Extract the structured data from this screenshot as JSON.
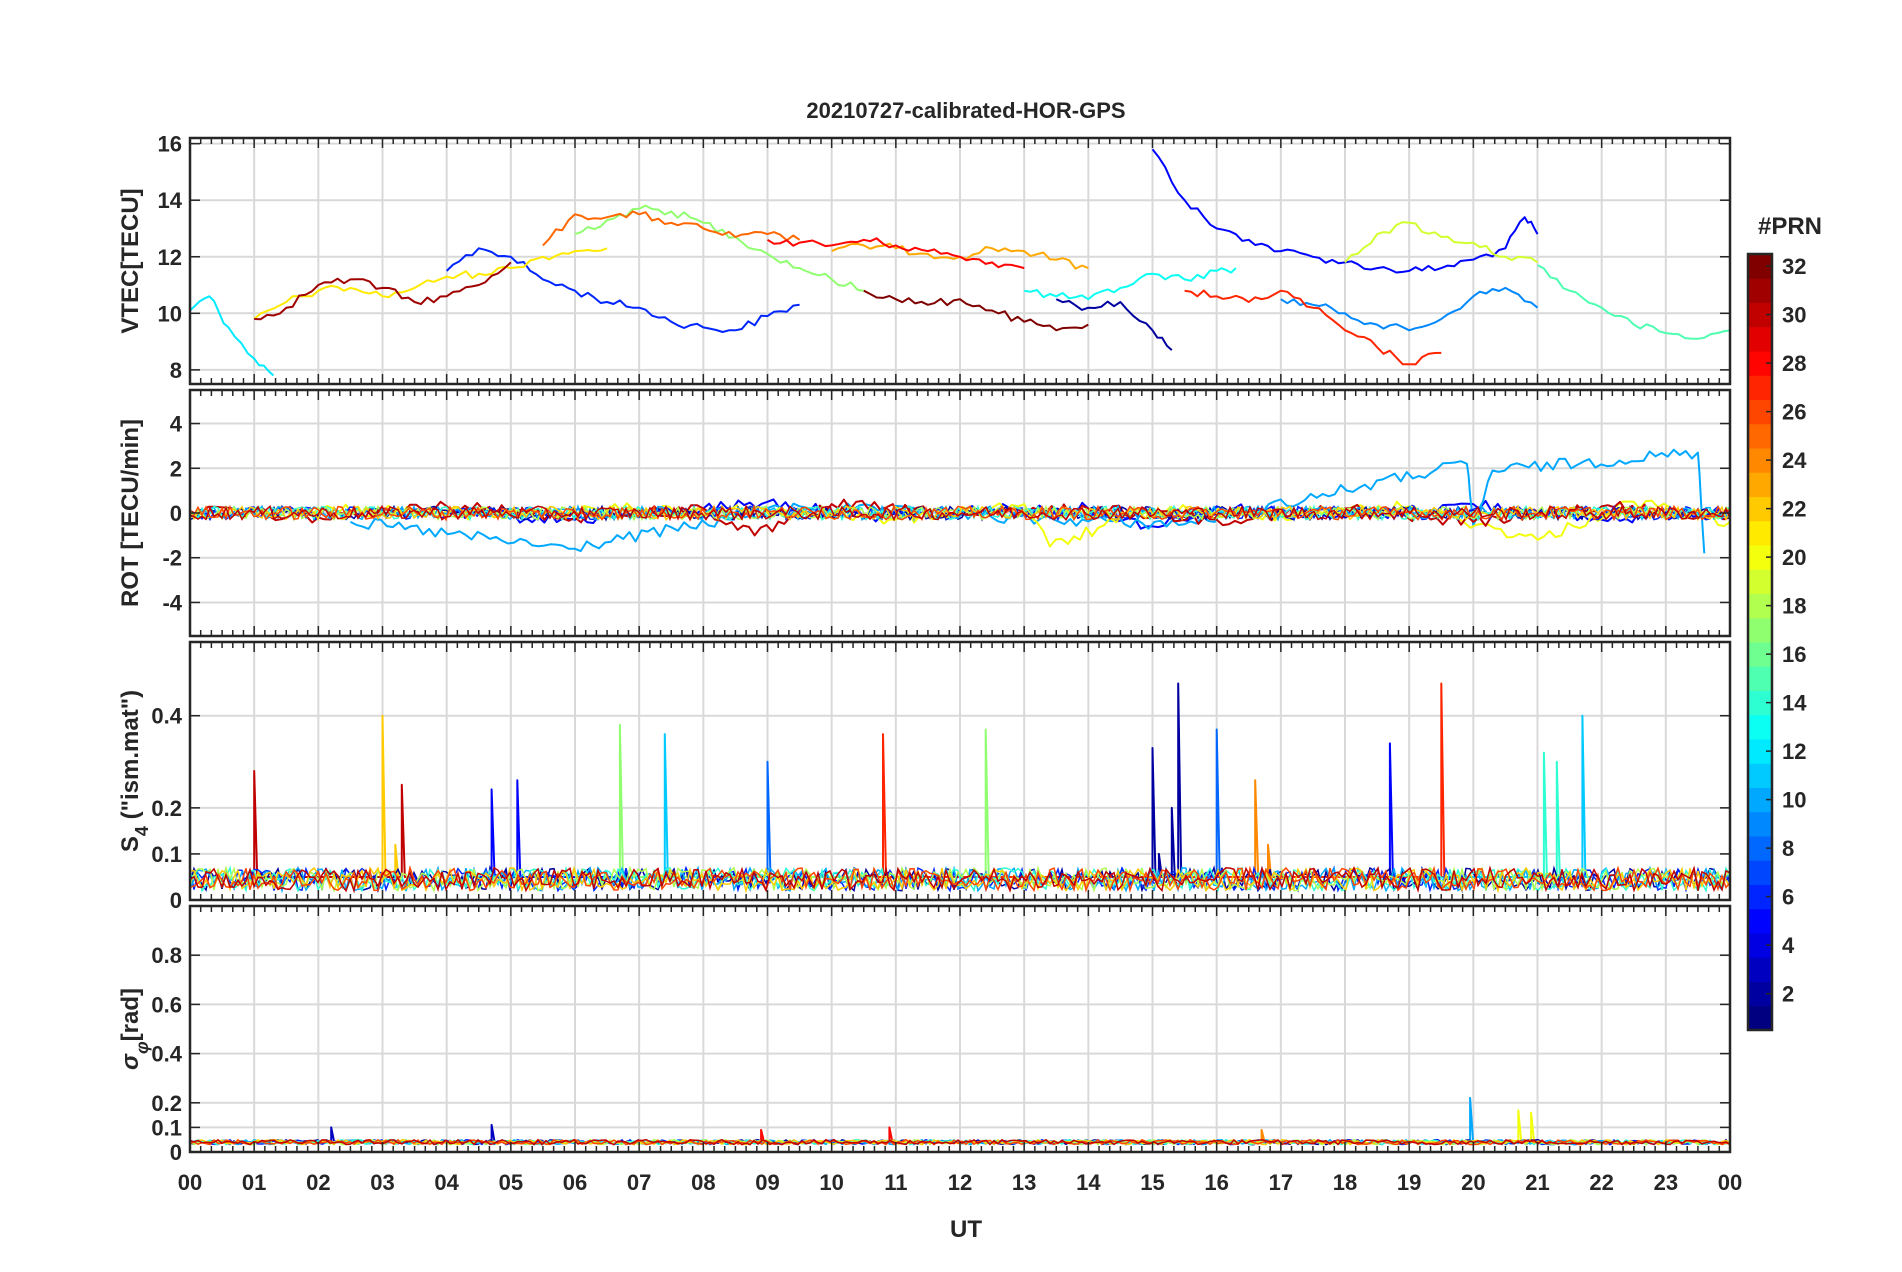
{
  "figure": {
    "title": "20210727-calibrated-HOR-GPS",
    "xlabel": "UT"
  },
  "chart_data": [
    {
      "id": "vtec",
      "type": "line",
      "ylabel": "VTEC[TECU]",
      "xlim": [
        0,
        24
      ],
      "ylim": [
        7.5,
        16.2
      ],
      "yticks": [
        8,
        10,
        12,
        14,
        16
      ],
      "grid": true,
      "series": [
        {
          "prn": 2,
          "x": [
            13.5,
            14,
            14.5,
            15,
            15.3
          ],
          "y": [
            10.5,
            10.2,
            10.4,
            9.4,
            8.7
          ]
        },
        {
          "prn": 5,
          "x": [
            15.0,
            15.5,
            16,
            16.5,
            17,
            17.5,
            18,
            18.5,
            19,
            19.5,
            20,
            20.5,
            20.8,
            21
          ],
          "y": [
            15.8,
            14.0,
            13.0,
            12.6,
            12.2,
            12.0,
            11.8,
            11.6,
            11.5,
            11.6,
            11.9,
            12.3,
            13.4,
            12.8
          ]
        },
        {
          "prn": 6,
          "x": [
            4,
            4.5,
            5,
            5.5,
            6,
            6.5,
            7,
            7.5,
            8,
            8.5,
            9,
            9.5
          ],
          "y": [
            11.5,
            12.3,
            12.0,
            11.2,
            10.8,
            10.4,
            10.2,
            9.7,
            9.5,
            9.4,
            9.9,
            10.3
          ]
        },
        {
          "prn": 9,
          "x": [
            17,
            17.5,
            18,
            18.5,
            19,
            19.5,
            20,
            20.5,
            21
          ],
          "y": [
            10.5,
            10.3,
            10.0,
            9.6,
            9.4,
            9.8,
            10.6,
            10.9,
            10.2
          ]
        },
        {
          "prn": 12,
          "x": [
            0,
            0.3,
            0.6,
            1,
            1.3
          ],
          "y": [
            10.1,
            10.6,
            9.5,
            8.4,
            7.8
          ]
        },
        {
          "prn": 13,
          "x": [
            13,
            13.5,
            14,
            14.5,
            15,
            15.5,
            16,
            16.3
          ],
          "y": [
            10.8,
            10.6,
            10.5,
            10.9,
            11.4,
            11.2,
            11.5,
            11.6
          ]
        },
        {
          "prn": 15,
          "x": [
            21,
            21.5,
            22,
            22.5,
            23,
            23.5,
            24
          ],
          "y": [
            11.7,
            10.8,
            10.2,
            9.6,
            9.3,
            9.1,
            9.4
          ]
        },
        {
          "prn": 17,
          "x": [
            6,
            6.5,
            7,
            7.5,
            8,
            8.5,
            9,
            9.5,
            10,
            10.5
          ],
          "y": [
            12.8,
            13.3,
            13.7,
            13.6,
            13.2,
            12.7,
            12.1,
            11.6,
            11.2,
            10.8
          ]
        },
        {
          "prn": 19,
          "x": [
            18,
            18.5,
            19,
            19.5,
            20,
            20.5,
            21
          ],
          "y": [
            11.8,
            12.8,
            13.2,
            12.7,
            12.5,
            12.0,
            11.8
          ]
        },
        {
          "prn": 21,
          "x": [
            1,
            1.5,
            2,
            2.5,
            3,
            3.5,
            4,
            4.5,
            5,
            5.5,
            6,
            6.5
          ],
          "y": [
            9.8,
            10.4,
            10.8,
            10.9,
            10.6,
            10.9,
            11.3,
            11.4,
            11.6,
            12.0,
            12.2,
            12.3
          ]
        },
        {
          "prn": 23,
          "x": [
            10,
            10.5,
            11,
            11.5,
            12,
            12.5,
            13,
            13.5,
            14
          ],
          "y": [
            12.2,
            12.4,
            12.3,
            12.1,
            12.0,
            12.3,
            12.2,
            11.9,
            11.6
          ]
        },
        {
          "prn": 25,
          "x": [
            5.5,
            6,
            6.5,
            7,
            7.5,
            8,
            8.5,
            9,
            9.5
          ],
          "y": [
            12.4,
            13.5,
            13.4,
            13.5,
            13.2,
            13.0,
            12.7,
            12.8,
            12.6
          ]
        },
        {
          "prn": 27,
          "x": [
            15.5,
            16,
            16.5,
            17,
            17.5,
            18,
            18.5,
            19,
            19.5
          ],
          "y": [
            10.8,
            10.6,
            10.4,
            10.8,
            10.2,
            9.4,
            8.8,
            8.2,
            8.6
          ]
        },
        {
          "prn": 28,
          "x": [
            9,
            9.5,
            10,
            10.5,
            11,
            11.5,
            12,
            12.5,
            13
          ],
          "y": [
            12.6,
            12.5,
            12.4,
            12.6,
            12.4,
            12.2,
            12.0,
            11.8,
            11.6
          ]
        },
        {
          "prn": 31,
          "x": [
            1,
            1.5,
            2,
            2.5,
            3,
            3.5,
            4,
            4.5,
            5
          ],
          "y": [
            9.8,
            10.2,
            11.0,
            11.2,
            10.9,
            10.4,
            10.6,
            11.0,
            11.8
          ]
        },
        {
          "prn": 32,
          "x": [
            10.5,
            11,
            11.5,
            12,
            12.5,
            13,
            13.5,
            14
          ],
          "y": [
            10.8,
            10.5,
            10.3,
            10.5,
            10.1,
            9.7,
            9.4,
            9.6
          ]
        }
      ]
    },
    {
      "id": "rot",
      "type": "line",
      "ylabel": "ROT [TECU/min]",
      "xlim": [
        0,
        24
      ],
      "ylim": [
        -5.5,
        5.5
      ],
      "yticks": [
        -4,
        -2,
        0,
        2,
        4
      ],
      "grid": true,
      "series": [
        {
          "prn": 5,
          "x": [
            4,
            6,
            8,
            9,
            10.5,
            12,
            14,
            15,
            16,
            18,
            20,
            22,
            24
          ],
          "y": [
            0,
            -0.3,
            0.2,
            0.5,
            -0.2,
            0.1,
            0.2,
            -0.6,
            0.3,
            -0.2,
            0.4,
            -0.3,
            0.2
          ]
        },
        {
          "prn": 10,
          "x": [
            2.5,
            5.9,
            9.5,
            12.5,
            15.5,
            19.9,
            20,
            20.3,
            23.5,
            23.6
          ],
          "y": [
            -0.4,
            -1.6,
            0.3,
            -0.2,
            -0.5,
            2.2,
            -0.6,
            1.9,
            2.7,
            -1.8
          ]
        },
        {
          "prn": 20,
          "x": [
            1,
            3,
            5,
            7,
            9,
            11,
            13,
            13.4,
            15,
            17,
            19,
            21,
            22.5,
            24
          ],
          "y": [
            0.2,
            0.1,
            -0.1,
            0.2,
            0.1,
            -0.3,
            0.4,
            -1.5,
            0.2,
            -0.1,
            0.3,
            -1.2,
            0.5,
            -0.4
          ]
        },
        {
          "prn": 30,
          "x": [
            0,
            2,
            4,
            6,
            8,
            8.8,
            10,
            12,
            14,
            16,
            18,
            20,
            22,
            24
          ],
          "y": [
            0.1,
            -0.2,
            0.3,
            -0.2,
            0.2,
            -1.0,
            0.4,
            -0.1,
            0.2,
            -0.3,
            0.2,
            -0.4,
            0.3,
            -0.2
          ]
        }
      ]
    },
    {
      "id": "s4",
      "type": "line",
      "ylabel": "S4 (\"ism.mat\")",
      "ylabel_main": "S",
      "ylabel_sub": "4",
      "ylabel_rest": " (\"ism.mat\")",
      "xlim": [
        0,
        24
      ],
      "ylim": [
        0,
        0.56
      ],
      "yticks": [
        0,
        0.1,
        0.2,
        0.4
      ],
      "grid": true,
      "series": [
        {
          "prn": 2,
          "x": [
            14.8,
            15,
            15.1,
            15.3,
            15.4,
            15.5
          ],
          "y": [
            0.05,
            0.33,
            0.1,
            0.2,
            0.47,
            0.05
          ]
        },
        {
          "prn": 5,
          "x": [
            4.5,
            4.7,
            4.9,
            5.1,
            18.5,
            18.7,
            18.9
          ],
          "y": [
            0.05,
            0.24,
            0.06,
            0.26,
            0.05,
            0.34,
            0.04
          ]
        },
        {
          "prn": 8,
          "x": [
            8.8,
            9,
            9.2,
            15.9,
            16,
            16.1
          ],
          "y": [
            0.05,
            0.3,
            0.05,
            0.05,
            0.37,
            0.06
          ]
        },
        {
          "prn": 11,
          "x": [
            7.2,
            7.4,
            7.6,
            21.6,
            21.7,
            21.8
          ],
          "y": [
            0.05,
            0.36,
            0.05,
            0.05,
            0.4,
            0.05
          ]
        },
        {
          "prn": 14,
          "x": [
            21.0,
            21.1,
            21.2,
            21.3
          ],
          "y": [
            0.05,
            0.32,
            0.05,
            0.3
          ]
        },
        {
          "prn": 17,
          "x": [
            12.3,
            12.4,
            12.5,
            6.6,
            6.7,
            6.8
          ],
          "y": [
            0.05,
            0.37,
            0.05,
            0.05,
            0.38,
            0.05
          ]
        },
        {
          "prn": 22,
          "x": [
            2.9,
            3,
            3.1,
            3.2
          ],
          "y": [
            0.05,
            0.4,
            0.06,
            0.12
          ]
        },
        {
          "prn": 24,
          "x": [
            16.4,
            16.6,
            16.8,
            17.0
          ],
          "y": [
            0.05,
            0.26,
            0.12,
            0.06
          ]
        },
        {
          "prn": 27,
          "x": [
            10.7,
            10.8,
            10.9,
            19.4,
            19.5,
            19.6
          ],
          "y": [
            0.05,
            0.36,
            0.05,
            0.05,
            0.47,
            0.05
          ]
        },
        {
          "prn": 30,
          "x": [
            0.9,
            1,
            1.1,
            3.2,
            3.3,
            3.4
          ],
          "y": [
            0.05,
            0.28,
            0.06,
            0.05,
            0.25,
            0.05
          ]
        }
      ]
    },
    {
      "id": "sigma_phi",
      "type": "line",
      "ylabel": "σφ[rad]",
      "ylabel_main": "σ",
      "ylabel_sub": "φ",
      "ylabel_rest": "[rad]",
      "xlim": [
        0,
        24
      ],
      "ylim": [
        0,
        1.0
      ],
      "yticks": [
        0,
        0.1,
        0.2,
        0.4,
        0.6,
        0.8
      ],
      "grid": true,
      "series": [
        {
          "prn": 3,
          "x": [
            2,
            2.2,
            2.4,
            4.6,
            4.7,
            4.8
          ],
          "y": [
            0.04,
            0.1,
            0.04,
            0.04,
            0.11,
            0.04
          ]
        },
        {
          "prn": 10,
          "x": [
            19.9,
            19.95,
            20.0
          ],
          "y": [
            0.04,
            0.22,
            0.04
          ]
        },
        {
          "prn": 20,
          "x": [
            20.6,
            20.7,
            20.8,
            20.9
          ],
          "y": [
            0.04,
            0.17,
            0.05,
            0.16
          ]
        },
        {
          "prn": 24,
          "x": [
            16.5,
            16.7,
            16.9
          ],
          "y": [
            0.04,
            0.09,
            0.05
          ]
        },
        {
          "prn": 28,
          "x": [
            10.8,
            10.9,
            11.0,
            8.8,
            8.9,
            9.0
          ],
          "y": [
            0.04,
            0.1,
            0.04,
            0.04,
            0.09,
            0.04
          ]
        }
      ]
    }
  ],
  "xaxis": {
    "ticklabels": [
      "00",
      "01",
      "02",
      "03",
      "04",
      "05",
      "06",
      "07",
      "08",
      "09",
      "10",
      "11",
      "12",
      "13",
      "14",
      "15",
      "16",
      "17",
      "18",
      "19",
      "20",
      "21",
      "22",
      "23",
      "00"
    ]
  },
  "colorbar": {
    "label": "#PRN",
    "min": 1,
    "max": 32,
    "ticklabels": [
      "2",
      "4",
      "6",
      "8",
      "10",
      "12",
      "14",
      "16",
      "18",
      "20",
      "22",
      "24",
      "26",
      "28",
      "30",
      "32"
    ]
  }
}
